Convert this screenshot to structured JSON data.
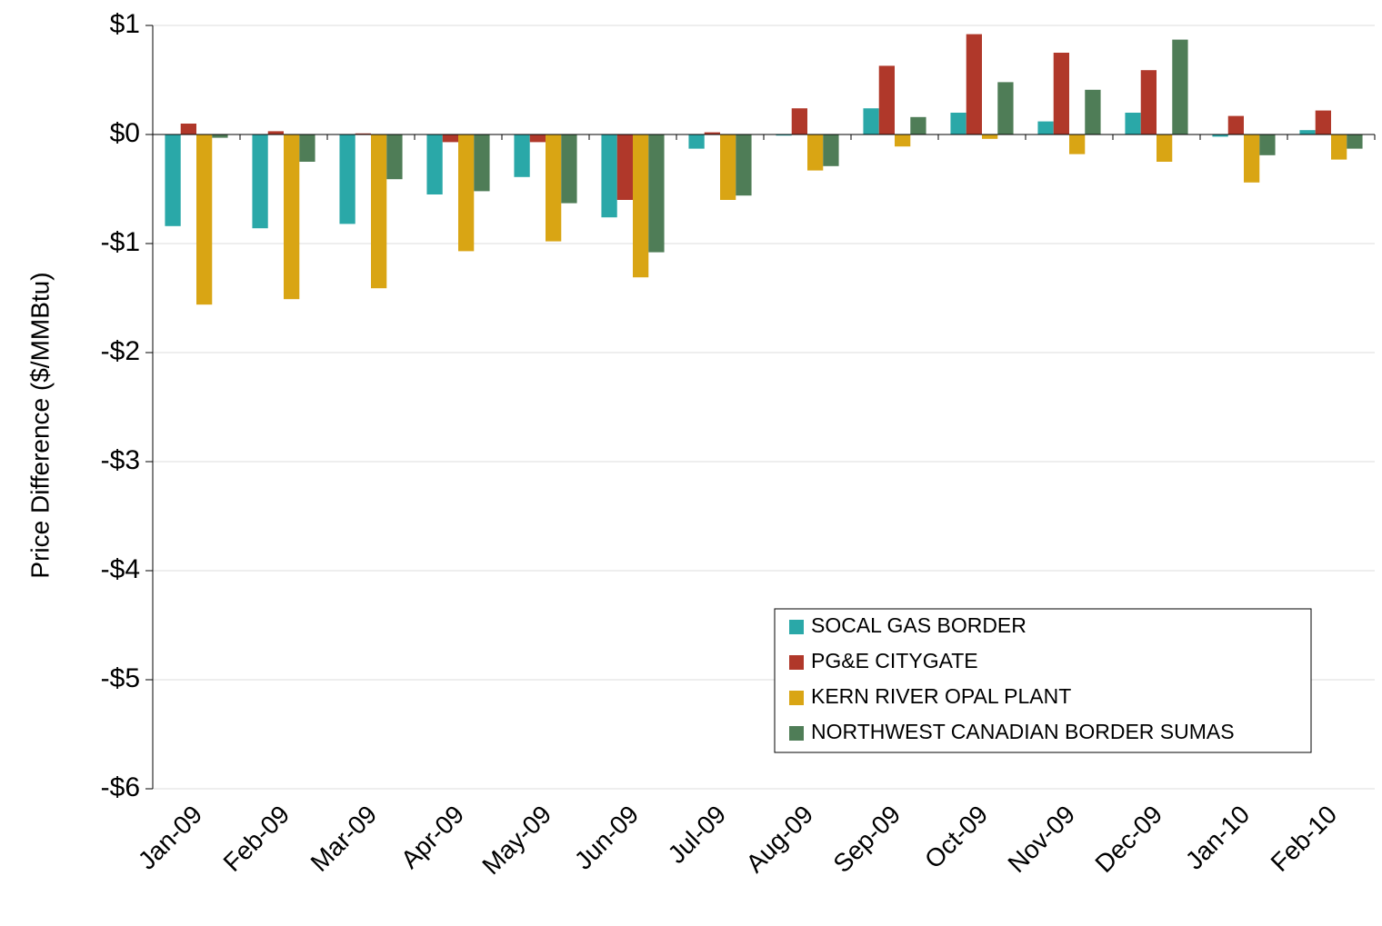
{
  "chart_data": {
    "type": "bar",
    "y_label": "Price Difference  ($/MMBtu)",
    "categories": [
      "Jan-09",
      "Feb-09",
      "Mar-09",
      "Apr-09",
      "May-09",
      "Jun-09",
      "Jul-09",
      "Aug-09",
      "Sep-09",
      "Oct-09",
      "Nov-09",
      "Dec-09",
      "Jan-10",
      "Feb-10"
    ],
    "series": [
      {
        "name": "SOCAL GAS BORDER",
        "color": "#2aa8a8",
        "values": [
          -0.84,
          -0.86,
          -0.82,
          -0.55,
          -0.39,
          -0.76,
          -0.13,
          -0.01,
          0.24,
          0.2,
          0.12,
          0.2,
          -0.02,
          0.04
        ]
      },
      {
        "name": "PG&E CITYGATE",
        "color": "#b0382a",
        "values": [
          0.1,
          0.03,
          0.01,
          -0.07,
          -0.07,
          -0.6,
          0.02,
          0.24,
          0.63,
          0.92,
          0.75,
          0.59,
          0.17,
          0.22
        ]
      },
      {
        "name": "KERN RIVER OPAL PLANT",
        "color": "#d9a514",
        "values": [
          -1.56,
          -1.51,
          -1.41,
          -1.07,
          -0.98,
          -1.31,
          -0.6,
          -0.33,
          -0.11,
          -0.04,
          -0.18,
          -0.25,
          -0.44,
          -0.23
        ]
      },
      {
        "name": "NORTHWEST CANADIAN BORDER SUMAS",
        "color": "#4f7d57",
        "values": [
          -0.03,
          -0.25,
          -0.41,
          -0.52,
          -0.63,
          -1.08,
          -0.56,
          -0.29,
          0.16,
          0.48,
          0.41,
          0.87,
          -0.19,
          -0.13
        ]
      }
    ],
    "ylim": [
      -6,
      1
    ],
    "yticks": [
      {
        "value": -6,
        "label": "-$6"
      },
      {
        "value": -5,
        "label": "-$5"
      },
      {
        "value": -4,
        "label": "-$4"
      },
      {
        "value": -3,
        "label": "-$3"
      },
      {
        "value": -2,
        "label": "-$2"
      },
      {
        "value": -1,
        "label": "-$1"
      },
      {
        "value": 0,
        "label": "$0"
      },
      {
        "value": 1,
        "label": "$1"
      }
    ],
    "grid": true,
    "legend_position": "lower right"
  }
}
